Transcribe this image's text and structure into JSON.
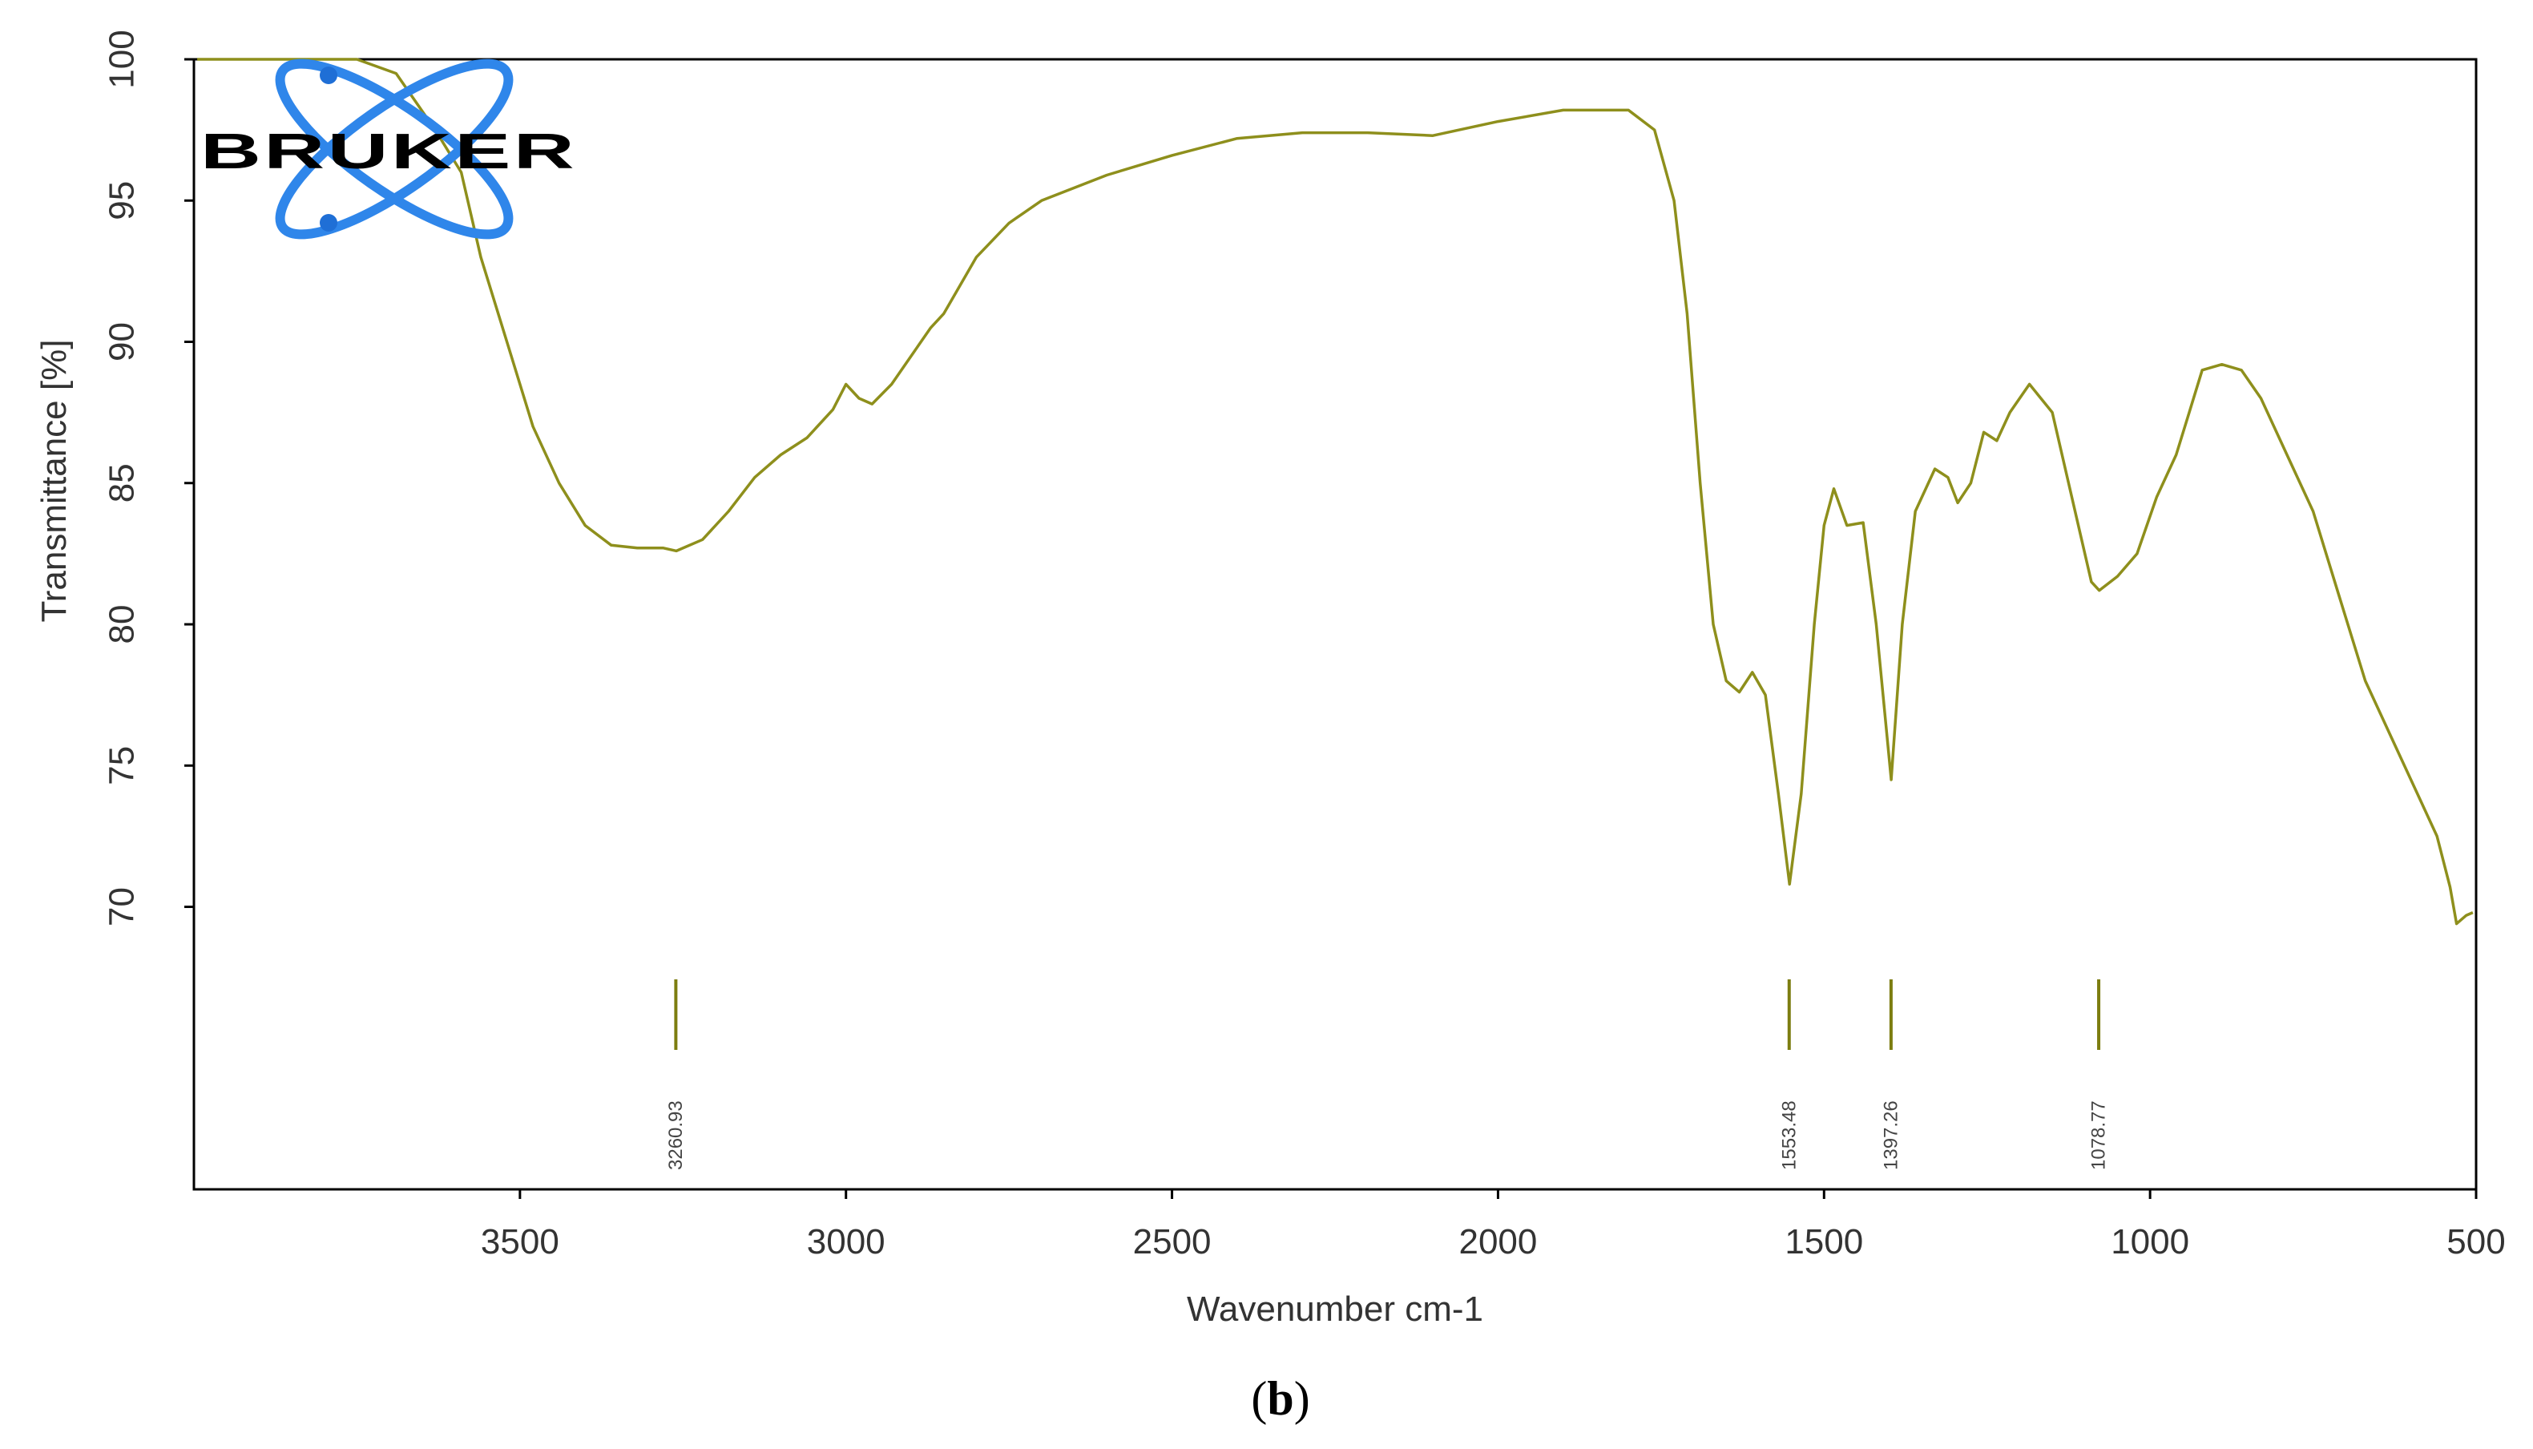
{
  "colors": {
    "spectrum": "#8e8f1c",
    "peak_marker": "#7c7d10",
    "frame": "#000000",
    "logo_orbit": "#2f86ea",
    "logo_nucleus": "#1f6fd6"
  },
  "logo": {
    "text": "BRUKER",
    "icon": "atom-orbit-icon"
  },
  "chart_data": {
    "type": "line",
    "title": "",
    "xlabel": "Wavenumber cm-1",
    "ylabel": "Transmittance [%]",
    "x_reversed": true,
    "xlim": [
      4000,
      500
    ],
    "ylim": [
      60,
      100
    ],
    "x_ticks": [
      3500,
      3000,
      2500,
      2000,
      1500,
      1000,
      500
    ],
    "x_tick_labels": [
      "3500",
      "3000",
      "2500",
      "2000",
      "1500",
      "1000",
      "500"
    ],
    "y_ticks": [
      70,
      75,
      80,
      85,
      90,
      95,
      100
    ],
    "y_tick_labels": [
      "70",
      "75",
      "80",
      "85",
      "90",
      "95",
      "100"
    ],
    "grid": false,
    "series": [
      {
        "points": [
          [
            3995,
            100
          ],
          [
            3750,
            100
          ],
          [
            3690,
            99.5
          ],
          [
            3630,
            97.5
          ],
          [
            3590,
            96.0
          ],
          [
            3560,
            93.0
          ],
          [
            3520,
            90.0
          ],
          [
            3480,
            87.0
          ],
          [
            3440,
            85.0
          ],
          [
            3400,
            83.5
          ],
          [
            3360,
            82.8
          ],
          [
            3320,
            82.7
          ],
          [
            3280,
            82.7
          ],
          [
            3260,
            82.6
          ],
          [
            3220,
            83.0
          ],
          [
            3180,
            84.0
          ],
          [
            3140,
            85.2
          ],
          [
            3100,
            86.0
          ],
          [
            3060,
            86.6
          ],
          [
            3020,
            87.6
          ],
          [
            3000,
            88.5
          ],
          [
            2980,
            88.0
          ],
          [
            2960,
            87.8
          ],
          [
            2930,
            88.5
          ],
          [
            2900,
            89.5
          ],
          [
            2870,
            90.5
          ],
          [
            2850,
            91.0
          ],
          [
            2800,
            93.0
          ],
          [
            2750,
            94.2
          ],
          [
            2700,
            95.0
          ],
          [
            2600,
            95.9
          ],
          [
            2500,
            96.6
          ],
          [
            2400,
            97.2
          ],
          [
            2300,
            97.4
          ],
          [
            2200,
            97.4
          ],
          [
            2100,
            97.3
          ],
          [
            2000,
            97.8
          ],
          [
            1900,
            98.2
          ],
          [
            1800,
            98.2
          ],
          [
            1760,
            97.5
          ],
          [
            1730,
            95.0
          ],
          [
            1710,
            91.0
          ],
          [
            1690,
            85.0
          ],
          [
            1670,
            80.0
          ],
          [
            1650,
            78.0
          ],
          [
            1630,
            77.6
          ],
          [
            1610,
            78.3
          ],
          [
            1590,
            77.5
          ],
          [
            1570,
            74.0
          ],
          [
            1553,
            70.8
          ],
          [
            1535,
            74.0
          ],
          [
            1515,
            80.0
          ],
          [
            1500,
            83.5
          ],
          [
            1485,
            84.8
          ],
          [
            1465,
            83.5
          ],
          [
            1440,
            83.6
          ],
          [
            1420,
            80.0
          ],
          [
            1397,
            74.5
          ],
          [
            1380,
            80.0
          ],
          [
            1360,
            84.0
          ],
          [
            1330,
            85.5
          ],
          [
            1310,
            85.2
          ],
          [
            1295,
            84.3
          ],
          [
            1275,
            85.0
          ],
          [
            1255,
            86.8
          ],
          [
            1235,
            86.5
          ],
          [
            1215,
            87.5
          ],
          [
            1185,
            88.5
          ],
          [
            1150,
            87.5
          ],
          [
            1120,
            84.5
          ],
          [
            1090,
            81.5
          ],
          [
            1078,
            81.2
          ],
          [
            1050,
            81.7
          ],
          [
            1020,
            82.5
          ],
          [
            990,
            84.5
          ],
          [
            960,
            86.0
          ],
          [
            940,
            87.5
          ],
          [
            920,
            89.0
          ],
          [
            890,
            89.2
          ],
          [
            860,
            89.0
          ],
          [
            830,
            88.0
          ],
          [
            790,
            86.0
          ],
          [
            750,
            84.0
          ],
          [
            710,
            81.0
          ],
          [
            670,
            78.0
          ],
          [
            630,
            76.0
          ],
          [
            590,
            74.0
          ],
          [
            560,
            72.5
          ],
          [
            540,
            70.7
          ],
          [
            530,
            69.4
          ],
          [
            515,
            69.7
          ],
          [
            505,
            69.8
          ]
        ]
      }
    ],
    "peaks": [
      {
        "x": 3260.93,
        "label": "3260.93"
      },
      {
        "x": 1553.48,
        "label": "1553.48"
      },
      {
        "x": 1397.26,
        "label": "1397.26"
      },
      {
        "x": 1078.77,
        "label": "1078.77"
      }
    ],
    "panel_label": {
      "open": "(",
      "letter": "b",
      "close": ")"
    }
  }
}
